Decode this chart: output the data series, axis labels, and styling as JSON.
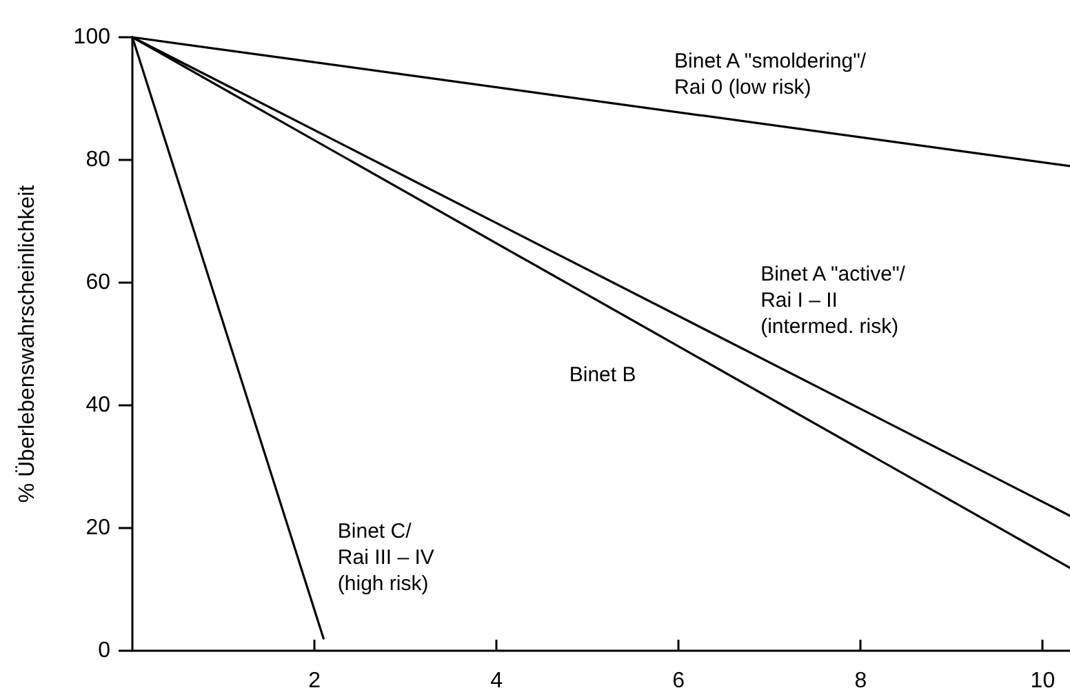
{
  "chart_data": {
    "type": "line",
    "ylabel": "% Überlebenswahrscheinlichkeit",
    "xlim": [
      0,
      10.3
    ],
    "xticks": [
      2,
      4,
      6,
      8,
      10
    ],
    "ylim": [
      0,
      100
    ],
    "yticks": [
      0,
      20,
      40,
      60,
      80,
      100
    ],
    "grid": false,
    "marker": "none",
    "line_style": "solid",
    "series": [
      {
        "name": "Binet A \"smoldering\"/\nRai 0 (low risk)",
        "color": "#000000",
        "x": [
          0,
          10.3
        ],
        "values": [
          100,
          79
        ]
      },
      {
        "name": "Binet A \"active\"/\nRai I – II\n(intermed. risk)",
        "color": "#000000",
        "x": [
          0,
          10.3
        ],
        "values": [
          100,
          22
        ]
      },
      {
        "name": "Binet B",
        "color": "#000000",
        "x": [
          0,
          10.3
        ],
        "values": [
          100,
          13.5
        ]
      },
      {
        "name": "Binet C/\nRai III – IV\n(high risk)",
        "color": "#000000",
        "x": [
          0,
          2.1
        ],
        "values": [
          100,
          2
        ]
      }
    ]
  }
}
